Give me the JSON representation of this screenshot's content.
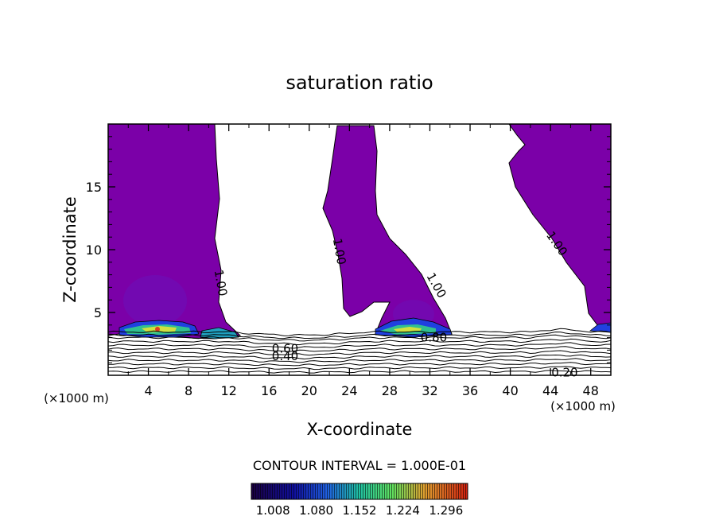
{
  "chart_data": {
    "type": "contour",
    "title": "saturation ratio",
    "xlabel": "X-coordinate",
    "ylabel": "Z-coordinate",
    "x_unit_label_left": "(×1000 m)",
    "x_unit_label_right": "(×1000 m)",
    "xlim": [
      0,
      50
    ],
    "ylim": [
      0,
      20
    ],
    "x_ticks": [
      "4",
      "8",
      "12",
      "16",
      "20",
      "24",
      "28",
      "32",
      "36",
      "40",
      "44",
      "48"
    ],
    "y_ticks": [
      "5",
      "10",
      "15"
    ],
    "contour_interval_text": "CONTOUR INTERVAL = 1.000E-01",
    "colorbar_ticks": [
      "1.008",
      "1.080",
      "1.152",
      "1.224",
      "1.296"
    ],
    "colorbar_range": [
      0.972,
      1.332
    ],
    "contour_labels": [
      {
        "text": "1.00",
        "x": 10.8,
        "z": 7.3,
        "angle": 80
      },
      {
        "text": "1.00",
        "x": 22.6,
        "z": 9.8,
        "angle": 80
      },
      {
        "text": "1.00",
        "x": 32.3,
        "z": 7.0,
        "angle": 60
      },
      {
        "text": "1.00",
        "x": 44.3,
        "z": 10.3,
        "angle": 55
      },
      {
        "text": "0.80",
        "x": 32.4,
        "z": 2.7,
        "angle": 0
      },
      {
        "text": "0.60",
        "x": 17.6,
        "z": 1.8,
        "angle": 0
      },
      {
        "text": "0.40",
        "x": 17.6,
        "z": 1.2,
        "angle": 0
      },
      {
        "text": "0.20",
        "x": 45.4,
        "z": -0.1,
        "angle": 0
      }
    ],
    "low_level_contours_z": [
      3.45,
      3.2,
      3.0,
      2.7,
      2.4,
      2.1,
      1.8,
      1.5,
      1.2,
      0.9,
      0.6,
      0.3
    ],
    "supersaturated_fill_color": "#7b00a8",
    "colormap": [
      "#1a0040",
      "#1010a0",
      "#2040e0",
      "#20a0e0",
      "#20d0a0",
      "#50e060",
      "#c0e040",
      "#f0b030",
      "#f05020",
      "#d02010"
    ]
  }
}
